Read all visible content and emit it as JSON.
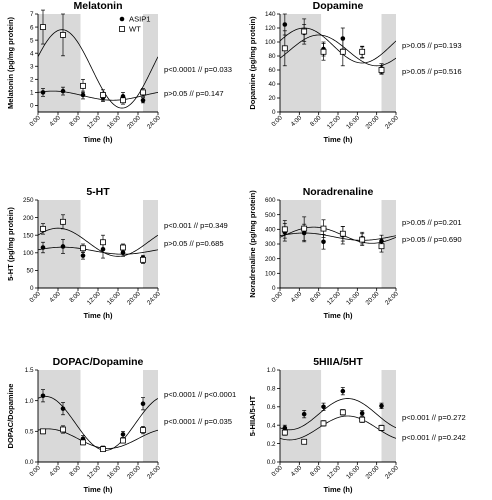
{
  "chart_data": [
    {
      "type": "scatter",
      "title": "Melatonin",
      "ylabel": "Melatonin (pg/mg protein)",
      "xlabel": "Time (h)",
      "ylim": [
        -0.5,
        7
      ],
      "yticks": [
        0,
        1,
        2,
        3,
        4,
        5,
        6,
        7
      ],
      "xlim": [
        0,
        24
      ],
      "xticks": [
        "0:00",
        "4:00",
        "8:00",
        "12:00",
        "16:00",
        "20:00",
        "24:00"
      ],
      "dark_periods": [
        [
          0,
          8.5
        ],
        [
          21,
          24
        ]
      ],
      "legend": {
        "placement": "top-right",
        "entries": [
          "ASIP1",
          "WT"
        ]
      },
      "series": [
        {
          "name": "ASIP1",
          "marker": "filled-circle",
          "x": [
            1,
            5,
            9,
            13,
            17,
            21
          ],
          "y": [
            1.0,
            1.1,
            0.8,
            0.6,
            0.7,
            0.4
          ],
          "err": [
            0.3,
            0.3,
            0.3,
            0.3,
            0.3,
            0.2
          ],
          "fit_curve": {
            "mesor": 0.75,
            "amplitude": 0.35,
            "peak_h": 3
          }
        },
        {
          "name": "WT",
          "marker": "open-square",
          "x": [
            1,
            5,
            9,
            13,
            17,
            21
          ],
          "y": [
            6.0,
            5.4,
            1.5,
            0.8,
            0.4,
            1.0
          ],
          "err": [
            1.3,
            1.6,
            0.5,
            0.4,
            0.3,
            0.3
          ],
          "fit_curve": {
            "mesor": 2.8,
            "amplitude": 3.0,
            "peak_h": 4.8
          }
        }
      ],
      "stats": [
        {
          "text": "p<0.0001 // p=0.033",
          "series": "WT"
        },
        {
          "text": "p>0.05 // p=0.147",
          "series": "ASIP1"
        }
      ]
    },
    {
      "type": "scatter",
      "title": "Dopamine",
      "ylabel": "Dopamine (pg/mg protein)",
      "xlabel": "Time (h)",
      "ylim": [
        0,
        140
      ],
      "yticks": [
        0,
        20,
        40,
        60,
        80,
        100,
        120,
        140
      ],
      "xlim": [
        0,
        24
      ],
      "xticks": [
        "0:00",
        "4:00",
        "8:00",
        "12:00",
        "16:00",
        "20:00",
        "24:00"
      ],
      "dark_periods": [
        [
          0,
          8.5
        ],
        [
          21,
          24
        ]
      ],
      "series": [
        {
          "name": "ASIP1",
          "marker": "filled-circle",
          "x": [
            1,
            5,
            9,
            13,
            17,
            21
          ],
          "y": [
            125,
            113,
            90,
            105,
            85,
            62
          ],
          "err": [
            15,
            12,
            10,
            15,
            8,
            7
          ],
          "fit_curve": {
            "mesor": 95,
            "amplitude": 25,
            "peak_h": 5
          }
        },
        {
          "name": "WT",
          "marker": "open-square",
          "x": [
            1,
            5,
            9,
            13,
            17,
            21
          ],
          "y": [
            91,
            115,
            86,
            86,
            86,
            60
          ],
          "err": [
            25,
            18,
            12,
            20,
            8,
            6
          ],
          "fit_curve": {
            "mesor": 88,
            "amplitude": 22,
            "peak_h": 8
          }
        }
      ],
      "stats": [
        {
          "text": "p>0.05 // p=0.193",
          "series": "ASIP1"
        },
        {
          "text": "p>0.05 // p=0.516",
          "series": "WT"
        }
      ]
    },
    {
      "type": "scatter",
      "title": "5-HT",
      "ylabel": "5-HT (pg/mg protein)",
      "xlabel": "Time (h)",
      "ylim": [
        0,
        250
      ],
      "yticks": [
        0,
        50,
        100,
        150,
        200,
        250
      ],
      "xlim": [
        0,
        24
      ],
      "xticks": [
        "0:00",
        "4:00",
        "8:00",
        "12:00",
        "16:00",
        "20:00",
        "24:00"
      ],
      "dark_periods": [
        [
          0,
          8.5
        ],
        [
          21,
          24
        ]
      ],
      "series": [
        {
          "name": "ASIP1",
          "marker": "filled-circle",
          "x": [
            1,
            5,
            9,
            13,
            17,
            21
          ],
          "y": [
            115,
            118,
            92,
            110,
            100,
            85
          ],
          "err": [
            15,
            20,
            10,
            25,
            10,
            8
          ],
          "fit_curve": {
            "mesor": 106,
            "amplitude": 10,
            "peak_h": 5
          }
        },
        {
          "name": "WT",
          "marker": "open-square",
          "x": [
            1,
            5,
            9,
            13,
            17,
            21
          ],
          "y": [
            168,
            188,
            113,
            130,
            115,
            80
          ],
          "err": [
            15,
            20,
            12,
            20,
            10,
            10
          ],
          "fit_curve": {
            "mesor": 130,
            "amplitude": 40,
            "peak_h": 4
          }
        }
      ],
      "stats": [
        {
          "text": "p<0.001 // p=0.349",
          "series": "WT"
        },
        {
          "text": "p>0.05 // p=0.685",
          "series": "ASIP1"
        }
      ]
    },
    {
      "type": "scatter",
      "title": "Noradrenaline",
      "ylabel": "Noradrenaline (pg/mg protein)",
      "xlabel": "Time (h)",
      "ylim": [
        0,
        600
      ],
      "yticks": [
        0,
        100,
        200,
        300,
        400,
        500,
        600
      ],
      "xlim": [
        0,
        24
      ],
      "xticks": [
        "0:00",
        "4:00",
        "8:00",
        "12:00",
        "16:00",
        "20:00",
        "24:00"
      ],
      "dark_periods": [
        [
          0,
          8.5
        ],
        [
          21,
          24
        ]
      ],
      "series": [
        {
          "name": "ASIP1",
          "marker": "filled-circle",
          "x": [
            1,
            5,
            9,
            13,
            17,
            21
          ],
          "y": [
            380,
            375,
            315,
            360,
            340,
            320
          ],
          "err": [
            60,
            60,
            50,
            60,
            40,
            40
          ],
          "fit_curve": {
            "mesor": 350,
            "amplitude": 25,
            "peak_h": 5
          }
        },
        {
          "name": "WT",
          "marker": "open-square",
          "x": [
            1,
            5,
            9,
            13,
            17,
            21
          ],
          "y": [
            400,
            405,
            405,
            370,
            330,
            285
          ],
          "err": [
            60,
            80,
            60,
            50,
            40,
            40
          ],
          "fit_curve": {
            "mesor": 360,
            "amplitude": 55,
            "peak_h": 7
          }
        }
      ],
      "stats": [
        {
          "text": "p>0.05 // p=0.201",
          "series": "WT"
        },
        {
          "text": "p>0.05 // p=0.690",
          "series": "ASIP1"
        }
      ]
    },
    {
      "type": "scatter",
      "title": "DOPAC/Dopamine",
      "ylabel": "DOPAC/Dopamine",
      "xlabel": "Time (h)",
      "ylim": [
        0,
        1.5
      ],
      "yticks": [
        0.0,
        0.5,
        1.0,
        1.5
      ],
      "xlim": [
        0,
        24
      ],
      "xticks": [
        "0:00",
        "4:00",
        "8:00",
        "12:00",
        "16:00",
        "20:00",
        "24:00"
      ],
      "dark_periods": [
        [
          0,
          8.5
        ],
        [
          21,
          24
        ]
      ],
      "series": [
        {
          "name": "ASIP1",
          "marker": "filled-circle",
          "x": [
            1,
            5,
            9,
            13,
            17,
            21
          ],
          "y": [
            1.08,
            0.87,
            0.38,
            0.22,
            0.45,
            0.95
          ],
          "err": [
            0.1,
            0.1,
            0.05,
            0.04,
            0.05,
            0.1
          ],
          "fit_curve": {
            "mesor": 0.63,
            "amplitude": 0.44,
            "peak_h": 1.5
          }
        },
        {
          "name": "WT",
          "marker": "open-square",
          "x": [
            1,
            5,
            9,
            13,
            17,
            21
          ],
          "y": [
            0.5,
            0.53,
            0.32,
            0.21,
            0.35,
            0.52
          ],
          "err": [
            0.04,
            0.06,
            0.04,
            0.03,
            0.04,
            0.06
          ],
          "fit_curve": {
            "mesor": 0.38,
            "amplitude": 0.16,
            "peak_h": 2
          }
        }
      ],
      "stats": [
        {
          "text": "p<0.0001 // p<0.0001",
          "series": "ASIP1"
        },
        {
          "text": "p<0.0001 // p=0.035",
          "series": "WT"
        }
      ]
    },
    {
      "type": "scatter",
      "title": "5HIIA/5HT",
      "ylabel": "5-HIIA/5-HT",
      "xlabel": "Time (h)",
      "ylim": [
        0,
        1.0
      ],
      "yticks": [
        0.0,
        0.2,
        0.4,
        0.6,
        0.8,
        1.0
      ],
      "xlim": [
        0,
        24
      ],
      "xticks": [
        "0:00",
        "4:00",
        "8:00",
        "12:00",
        "16:00",
        "20:00",
        "24:00"
      ],
      "dark_periods": [
        [
          0,
          8.5
        ],
        [
          21,
          24
        ]
      ],
      "series": [
        {
          "name": "ASIP1",
          "marker": "filled-circle",
          "x": [
            1,
            5,
            9,
            13,
            17,
            21
          ],
          "y": [
            0.37,
            0.52,
            0.6,
            0.77,
            0.53,
            0.61
          ],
          "err": [
            0.03,
            0.04,
            0.04,
            0.04,
            0.03,
            0.03
          ],
          "fit_curve": {
            "mesor": 0.52,
            "amplitude": 0.17,
            "peak_h": 14
          }
        },
        {
          "name": "WT",
          "marker": "open-square",
          "x": [
            1,
            5,
            9,
            13,
            17,
            21
          ],
          "y": [
            0.32,
            0.22,
            0.42,
            0.54,
            0.46,
            0.37
          ],
          "err": [
            0.03,
            0.02,
            0.03,
            0.03,
            0.03,
            0.03
          ],
          "fit_curve": {
            "mesor": 0.37,
            "amplitude": 0.13,
            "peak_h": 14
          }
        }
      ],
      "stats": [
        {
          "text": "p<0.001 // p=0.272",
          "series": "ASIP1"
        },
        {
          "text": "p<0.001 // p=0.242",
          "series": "WT"
        }
      ]
    }
  ]
}
